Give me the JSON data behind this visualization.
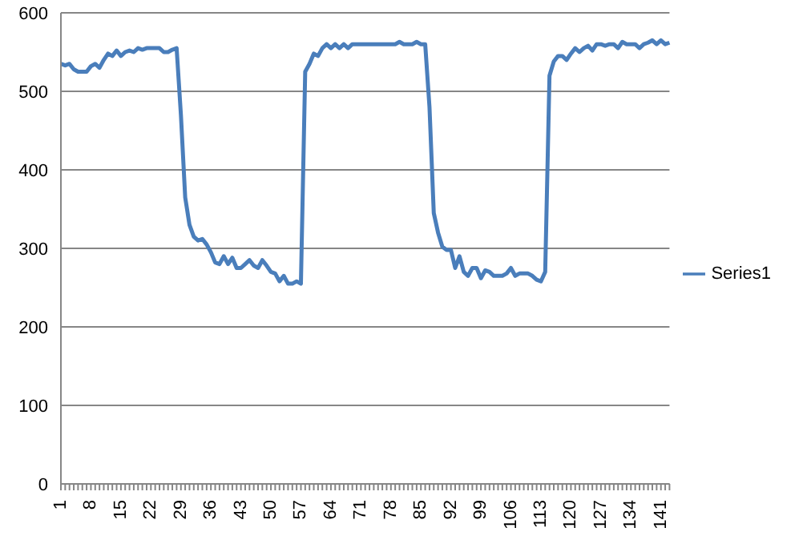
{
  "chart_data": {
    "type": "line",
    "categories": [
      "1",
      null,
      null,
      null,
      null,
      null,
      null,
      "8",
      null,
      null,
      null,
      null,
      null,
      null,
      "15",
      null,
      null,
      null,
      null,
      null,
      null,
      "22",
      null,
      null,
      null,
      null,
      null,
      null,
      "29",
      null,
      null,
      null,
      null,
      null,
      null,
      "36",
      null,
      null,
      null,
      null,
      null,
      null,
      "43",
      null,
      null,
      null,
      null,
      null,
      null,
      "50",
      null,
      null,
      null,
      null,
      null,
      null,
      "57",
      null,
      null,
      null,
      null,
      null,
      null,
      "64",
      null,
      null,
      null,
      null,
      null,
      null,
      "71",
      null,
      null,
      null,
      null,
      null,
      null,
      "78",
      null,
      null,
      null,
      null,
      null,
      null,
      "85",
      null,
      null,
      null,
      null,
      null,
      null,
      "92",
      null,
      null,
      null,
      null,
      null,
      null,
      "99",
      null,
      null,
      null,
      null,
      null,
      null,
      "106",
      null,
      null,
      null,
      null,
      null,
      null,
      "113",
      null,
      null,
      null,
      null,
      null,
      null,
      "120",
      null,
      null,
      null,
      null,
      null,
      null,
      "127",
      null,
      null,
      null,
      null,
      null,
      null,
      "134",
      null,
      null,
      null,
      null,
      null,
      null,
      "141",
      null,
      null
    ],
    "series": [
      {
        "name": "Series1",
        "color": "#4a7ebb",
        "values": [
          535,
          533,
          535,
          528,
          525,
          525,
          525,
          532,
          535,
          530,
          540,
          548,
          545,
          552,
          545,
          550,
          552,
          550,
          555,
          553,
          555,
          555,
          555,
          555,
          550,
          550,
          553,
          555,
          470,
          365,
          330,
          315,
          310,
          312,
          305,
          295,
          282,
          280,
          290,
          280,
          288,
          275,
          275,
          280,
          285,
          278,
          275,
          285,
          278,
          270,
          268,
          258,
          265,
          255,
          255,
          258,
          255,
          525,
          535,
          548,
          545,
          555,
          560,
          555,
          560,
          555,
          560,
          555,
          560,
          560,
          560,
          560,
          560,
          560,
          560,
          560,
          560,
          560,
          560,
          563,
          560,
          560,
          560,
          563,
          560,
          560,
          480,
          345,
          320,
          302,
          298,
          298,
          275,
          290,
          270,
          265,
          275,
          275,
          262,
          272,
          270,
          265,
          265,
          265,
          268,
          275,
          265,
          268,
          268,
          268,
          265,
          260,
          258,
          270,
          520,
          538,
          545,
          545,
          540,
          548,
          555,
          550,
          555,
          558,
          552,
          560,
          560,
          558,
          560,
          560,
          555,
          563,
          560,
          560,
          560,
          555,
          560,
          562,
          565,
          560,
          565,
          560,
          562
        ]
      }
    ],
    "ylim": [
      0,
      600
    ],
    "yticks": [
      0,
      100,
      200,
      300,
      400,
      500,
      600
    ],
    "grid": "y",
    "legend": "right",
    "marker": "none",
    "line_style": "solid"
  }
}
